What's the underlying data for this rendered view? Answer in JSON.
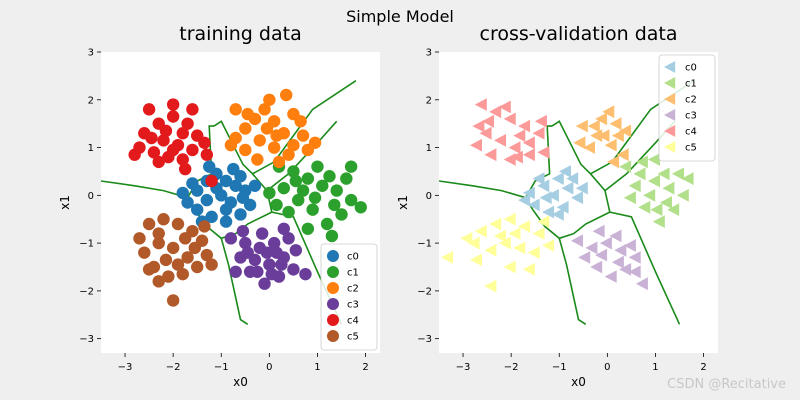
{
  "suptitle": "Simple Model",
  "watermark": "CSDN @Recitative",
  "colors": {
    "figure_bg": "#efefef",
    "boundary": "#1a8a1a"
  },
  "chart_data": [
    {
      "type": "scatter",
      "title": "training data",
      "xlabel": "x0",
      "ylabel": "x1",
      "xlim": [
        -3.5,
        2.3
      ],
      "ylim": [
        -3.3,
        3.0
      ],
      "xticks": [
        -3,
        -2,
        -1,
        0,
        1,
        2
      ],
      "yticks": [
        -3,
        -2,
        -1,
        0,
        1,
        2,
        3
      ],
      "grid": false,
      "legend": "bottom-right",
      "marker": "circle",
      "series": [
        {
          "name": "c0",
          "color": "#1f77b4",
          "points": [
            [
              -1.7,
              -0.15
            ],
            [
              -1.5,
              0.1
            ],
            [
              -1.3,
              0.3
            ],
            [
              -1.1,
              0.45
            ],
            [
              -0.9,
              0.3
            ],
            [
              -0.7,
              0.2
            ],
            [
              -0.5,
              0.1
            ],
            [
              -0.4,
              -0.2
            ],
            [
              -0.6,
              -0.4
            ],
            [
              -0.9,
              -0.55
            ],
            [
              -1.2,
              -0.45
            ],
            [
              -1.5,
              -0.3
            ],
            [
              -1.3,
              -0.1
            ],
            [
              -1.0,
              0.0
            ],
            [
              -0.8,
              -0.15
            ],
            [
              -1.1,
              0.15
            ],
            [
              -0.6,
              0.4
            ],
            [
              -1.6,
              0.25
            ],
            [
              -0.9,
              -0.3
            ],
            [
              -1.4,
              -0.55
            ],
            [
              -0.3,
              0.2
            ],
            [
              -0.75,
              0.55
            ],
            [
              -1.25,
              0.6
            ],
            [
              -1.8,
              0.05
            ],
            [
              -0.55,
              -0.05
            ]
          ]
        },
        {
          "name": "c1",
          "color": "#2ca02c",
          "points": [
            [
              0.2,
              0.6
            ],
            [
              0.5,
              0.5
            ],
            [
              0.8,
              0.35
            ],
            [
              1.1,
              0.2
            ],
            [
              1.4,
              0.1
            ],
            [
              1.7,
              -0.1
            ],
            [
              1.5,
              -0.4
            ],
            [
              1.2,
              -0.6
            ],
            [
              0.9,
              -0.3
            ],
            [
              0.6,
              -0.1
            ],
            [
              0.3,
              0.15
            ],
            [
              0.0,
              0.05
            ],
            [
              0.4,
              -0.35
            ],
            [
              0.8,
              -0.7
            ],
            [
              1.3,
              -0.85
            ],
            [
              1.6,
              0.35
            ],
            [
              1.0,
              0.6
            ],
            [
              0.7,
              0.1
            ],
            [
              1.9,
              -0.25
            ],
            [
              1.35,
              -0.2
            ],
            [
              0.15,
              -0.2
            ],
            [
              1.7,
              0.6
            ],
            [
              0.95,
              -0.05
            ],
            [
              0.55,
              0.3
            ],
            [
              1.25,
              0.4
            ]
          ]
        },
        {
          "name": "c2",
          "color": "#ff7f0e",
          "points": [
            [
              -0.7,
              1.2
            ],
            [
              -0.5,
              1.4
            ],
            [
              -0.3,
              1.6
            ],
            [
              -0.1,
              1.8
            ],
            [
              0.1,
              1.55
            ],
            [
              0.3,
              1.3
            ],
            [
              0.5,
              1.05
            ],
            [
              0.7,
              1.25
            ],
            [
              0.4,
              0.85
            ],
            [
              0.1,
              1.0
            ],
            [
              -0.2,
              1.15
            ],
            [
              -0.5,
              0.95
            ],
            [
              -0.8,
              1.05
            ],
            [
              0.0,
              2.0
            ],
            [
              0.35,
              2.1
            ],
            [
              -0.7,
              1.8
            ],
            [
              0.65,
              1.55
            ],
            [
              0.2,
              0.7
            ],
            [
              -0.25,
              0.75
            ],
            [
              0.8,
              0.95
            ],
            [
              -0.45,
              1.7
            ],
            [
              0.15,
              1.25
            ],
            [
              0.5,
              1.7
            ],
            [
              -0.05,
              1.4
            ],
            [
              0.95,
              1.1
            ]
          ]
        },
        {
          "name": "c3",
          "color": "#6a3d9a",
          "points": [
            [
              -0.8,
              -0.9
            ],
            [
              -0.5,
              -1.0
            ],
            [
              -0.2,
              -1.1
            ],
            [
              0.1,
              -1.0
            ],
            [
              0.3,
              -1.3
            ],
            [
              0.5,
              -1.55
            ],
            [
              0.2,
              -1.7
            ],
            [
              -0.1,
              -1.85
            ],
            [
              -0.4,
              -1.6
            ],
            [
              -0.6,
              -1.3
            ],
            [
              -0.3,
              -1.35
            ],
            [
              0.0,
              -1.45
            ],
            [
              -0.15,
              -0.8
            ],
            [
              0.4,
              -0.9
            ],
            [
              0.75,
              -1.65
            ],
            [
              -0.7,
              -1.6
            ],
            [
              0.15,
              -1.2
            ],
            [
              -0.45,
              -1.2
            ],
            [
              0.3,
              -0.7
            ],
            [
              0.55,
              -1.15
            ],
            [
              -0.25,
              -1.6
            ],
            [
              0.05,
              -1.65
            ],
            [
              -0.55,
              -0.75
            ],
            [
              0.25,
              -1.45
            ],
            [
              -0.05,
              -1.2
            ]
          ]
        },
        {
          "name": "c4",
          "color": "#e31a1c",
          "points": [
            [
              -2.7,
              1.0
            ],
            [
              -2.4,
              0.9
            ],
            [
              -2.1,
              0.8
            ],
            [
              -1.8,
              0.75
            ],
            [
              -1.6,
              0.95
            ],
            [
              -1.5,
              1.25
            ],
            [
              -1.7,
              1.5
            ],
            [
              -2.0,
              1.65
            ],
            [
              -2.3,
              1.5
            ],
            [
              -2.6,
              1.3
            ],
            [
              -2.2,
              1.15
            ],
            [
              -1.9,
              1.05
            ],
            [
              -2.5,
              1.8
            ],
            [
              -2.0,
              1.9
            ],
            [
              -1.6,
              1.8
            ],
            [
              -2.3,
              0.7
            ],
            [
              -2.8,
              0.85
            ],
            [
              -1.3,
              0.85
            ],
            [
              -1.2,
              0.3
            ],
            [
              -1.8,
              1.3
            ],
            [
              -2.45,
              1.2
            ],
            [
              -2.0,
              0.95
            ],
            [
              -1.35,
              1.1
            ],
            [
              -2.15,
              1.35
            ],
            [
              -1.75,
              0.55
            ]
          ]
        },
        {
          "name": "c5",
          "color": "#b15928",
          "points": [
            [
              -2.5,
              -0.6
            ],
            [
              -2.2,
              -0.5
            ],
            [
              -1.9,
              -0.6
            ],
            [
              -1.6,
              -0.75
            ],
            [
              -1.4,
              -0.95
            ],
            [
              -1.3,
              -1.25
            ],
            [
              -1.5,
              -1.5
            ],
            [
              -1.8,
              -1.65
            ],
            [
              -2.1,
              -1.7
            ],
            [
              -2.4,
              -1.5
            ],
            [
              -2.6,
              -1.2
            ],
            [
              -2.3,
              -1.0
            ],
            [
              -2.0,
              -1.1
            ],
            [
              -1.7,
              -1.3
            ],
            [
              -2.0,
              -2.2
            ],
            [
              -2.3,
              -1.8
            ],
            [
              -1.2,
              -1.45
            ],
            [
              -2.7,
              -0.9
            ],
            [
              -1.75,
              -0.9
            ],
            [
              -2.15,
              -1.35
            ],
            [
              -1.55,
              -1.1
            ],
            [
              -2.5,
              -1.55
            ],
            [
              -1.9,
              -1.45
            ],
            [
              -2.3,
              -0.8
            ],
            [
              -1.35,
              -0.65
            ]
          ]
        }
      ]
    },
    {
      "type": "scatter",
      "title": "cross-validation data",
      "xlabel": "x0",
      "ylabel": "x1",
      "xlim": [
        -3.5,
        2.3
      ],
      "ylim": [
        -3.3,
        3.0
      ],
      "xticks": [
        -3,
        -2,
        -1,
        0,
        1,
        2
      ],
      "yticks": [
        -3,
        -2,
        -1,
        0,
        1,
        2,
        3
      ],
      "grid": false,
      "legend": "top-right",
      "marker": "triangle-left",
      "series": [
        {
          "name": "c0",
          "color": "#a6cee3",
          "points": [
            [
              -1.6,
              0.05
            ],
            [
              -1.3,
              0.2
            ],
            [
              -1.0,
              0.35
            ],
            [
              -0.8,
              0.15
            ],
            [
              -0.6,
              -0.05
            ],
            [
              -0.9,
              -0.25
            ],
            [
              -1.2,
              -0.35
            ],
            [
              -1.5,
              -0.2
            ],
            [
              -1.1,
              0.0
            ],
            [
              -0.7,
              0.35
            ],
            [
              -1.4,
              0.35
            ],
            [
              -0.5,
              0.15
            ],
            [
              -1.0,
              -0.4
            ],
            [
              -1.7,
              -0.1
            ],
            [
              -0.85,
              0.5
            ],
            [
              -1.25,
              -0.05
            ]
          ]
        },
        {
          "name": "c1",
          "color": "#b2df8a",
          "points": [
            [
              0.4,
              0.6
            ],
            [
              0.7,
              0.45
            ],
            [
              1.0,
              0.3
            ],
            [
              1.3,
              0.15
            ],
            [
              1.6,
              0.0
            ],
            [
              1.4,
              -0.3
            ],
            [
              1.1,
              -0.55
            ],
            [
              0.8,
              -0.25
            ],
            [
              0.5,
              -0.05
            ],
            [
              1.0,
              0.75
            ],
            [
              1.5,
              0.45
            ],
            [
              0.9,
              0.0
            ],
            [
              1.2,
              0.45
            ],
            [
              0.6,
              0.2
            ],
            [
              1.7,
              0.35
            ],
            [
              1.25,
              -0.15
            ],
            [
              0.75,
              0.7
            ],
            [
              1.05,
              -0.3
            ]
          ]
        },
        {
          "name": "c2",
          "color": "#fdbf6f",
          "points": [
            [
              -0.5,
              1.45
            ],
            [
              -0.2,
              1.25
            ],
            [
              0.1,
              1.05
            ],
            [
              0.35,
              0.85
            ],
            [
              0.2,
              1.5
            ],
            [
              -0.1,
              1.6
            ],
            [
              -0.35,
              1.0
            ],
            [
              0.25,
              1.25
            ],
            [
              -0.55,
              1.1
            ],
            [
              0.05,
              1.75
            ],
            [
              0.4,
              1.35
            ],
            [
              -0.25,
              1.45
            ],
            [
              0.15,
              0.7
            ],
            [
              -0.05,
              1.25
            ]
          ]
        },
        {
          "name": "c3",
          "color": "#cab2d6",
          "points": [
            [
              -0.6,
              -0.95
            ],
            [
              -0.3,
              -1.1
            ],
            [
              0.0,
              -1.0
            ],
            [
              0.3,
              -1.15
            ],
            [
              0.6,
              -1.3
            ],
            [
              0.4,
              -1.55
            ],
            [
              0.1,
              -1.7
            ],
            [
              -0.2,
              -1.5
            ],
            [
              0.75,
              -1.85
            ],
            [
              -0.1,
              -1.25
            ],
            [
              0.2,
              -0.85
            ],
            [
              0.5,
              -1.05
            ],
            [
              -0.45,
              -1.3
            ],
            [
              0.25,
              -1.4
            ],
            [
              0.6,
              -1.6
            ],
            [
              -0.15,
              -0.75
            ]
          ]
        },
        {
          "name": "c4",
          "color": "#fb9a99",
          "points": [
            [
              -2.6,
              1.9
            ],
            [
              -2.3,
              1.75
            ],
            [
              -2.0,
              1.6
            ],
            [
              -1.7,
              1.45
            ],
            [
              -1.4,
              1.3
            ],
            [
              -1.3,
              0.9
            ],
            [
              -1.6,
              0.85
            ],
            [
              -1.9,
              1.0
            ],
            [
              -2.2,
              1.15
            ],
            [
              -2.5,
              1.3
            ],
            [
              -2.7,
              1.05
            ],
            [
              -2.4,
              0.85
            ],
            [
              -2.0,
              0.75
            ],
            [
              -1.6,
              1.1
            ],
            [
              -2.1,
              1.85
            ],
            [
              -1.8,
              1.25
            ],
            [
              -2.45,
              1.55
            ],
            [
              -1.35,
              1.55
            ],
            [
              -2.65,
              1.45
            ],
            [
              -1.85,
              0.8
            ]
          ]
        },
        {
          "name": "c5",
          "color": "#ffff99",
          "points": [
            [
              -2.6,
              -0.75
            ],
            [
              -2.3,
              -0.6
            ],
            [
              -2.0,
              -0.5
            ],
            [
              -1.7,
              -0.65
            ],
            [
              -1.4,
              -0.8
            ],
            [
              -1.2,
              -1.05
            ],
            [
              -1.5,
              -1.2
            ],
            [
              -1.8,
              -1.1
            ],
            [
              -2.1,
              -1.0
            ],
            [
              -2.4,
              -1.15
            ],
            [
              -2.7,
              -1.35
            ],
            [
              -3.3,
              -1.3
            ],
            [
              -2.0,
              -1.5
            ],
            [
              -1.6,
              -1.55
            ],
            [
              -2.9,
              -0.9
            ],
            [
              -2.4,
              -1.9
            ],
            [
              -1.3,
              -0.55
            ],
            [
              -2.2,
              -0.85
            ],
            [
              -2.75,
              -1.0
            ],
            [
              -1.9,
              -0.8
            ]
          ]
        }
      ]
    }
  ]
}
